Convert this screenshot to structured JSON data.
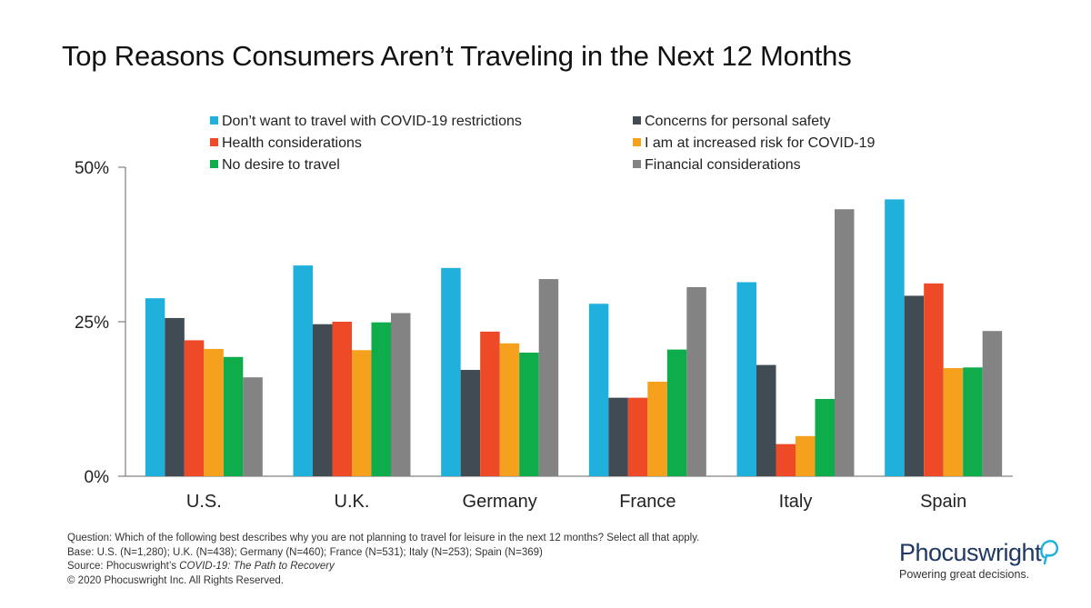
{
  "title": "Top Reasons Consumers Aren’t Traveling in the Next 12 Months",
  "chart_data": {
    "type": "bar",
    "title": "Top Reasons Consumers Aren’t Traveling in the Next 12 Months",
    "xlabel": "",
    "ylabel": "",
    "ylim": [
      0,
      50
    ],
    "y_ticks": [
      "0%",
      "25%",
      "50%"
    ],
    "y_tick_values": [
      0,
      25,
      50
    ],
    "categories": [
      "U.S.",
      "U.K.",
      "Germany",
      "France",
      "Italy",
      "Spain"
    ],
    "legend_position": "top",
    "series": [
      {
        "name": "Don’t want to travel with COVID-19 restrictions",
        "color": "#1fb1dc",
        "values": [
          28.8,
          34.1,
          33.7,
          27.9,
          31.4,
          44.8
        ]
      },
      {
        "name": "Concerns for personal safety",
        "color": "#414b54",
        "values": [
          25.6,
          24.6,
          17.2,
          12.7,
          18.0,
          29.2
        ]
      },
      {
        "name": "Health considerations",
        "color": "#ef4a27",
        "values": [
          22.0,
          25.0,
          23.4,
          12.7,
          5.2,
          31.2
        ]
      },
      {
        "name": "I am at increased risk for COVID-19",
        "color": "#f6a11d",
        "values": [
          20.6,
          20.4,
          21.5,
          15.3,
          6.5,
          17.5
        ]
      },
      {
        "name": "No desire to travel",
        "color": "#0fac4b",
        "values": [
          19.3,
          24.9,
          20.0,
          20.5,
          12.5,
          17.6
        ]
      },
      {
        "name": "Financial considerations",
        "color": "#838383",
        "values": [
          16.0,
          26.4,
          31.9,
          30.6,
          43.2,
          23.5
        ]
      }
    ],
    "watermark": "Phocuswright"
  },
  "footnotes": {
    "question": "Question: Which of the following best describes why you are not planning to travel for leisure in the next 12 months? Select all that apply.",
    "base": "Base: U.S. (N=1,280); U.K. (N=438); Germany (N=460); France (N=531); Italy (N=253); Spain (N=369)",
    "source_prefix": "Source: Phocuswright’s ",
    "source_title": "COVID-19: The Path to Recovery",
    "copyright": "© 2020 Phocuswright Inc. All Rights Reserved."
  },
  "logo": {
    "name": "Phocuswright",
    "tagline": "Powering great decisions.",
    "icon": "speech-bubble-icon",
    "color": "#1f3864",
    "accent": "#1fb1dc"
  }
}
